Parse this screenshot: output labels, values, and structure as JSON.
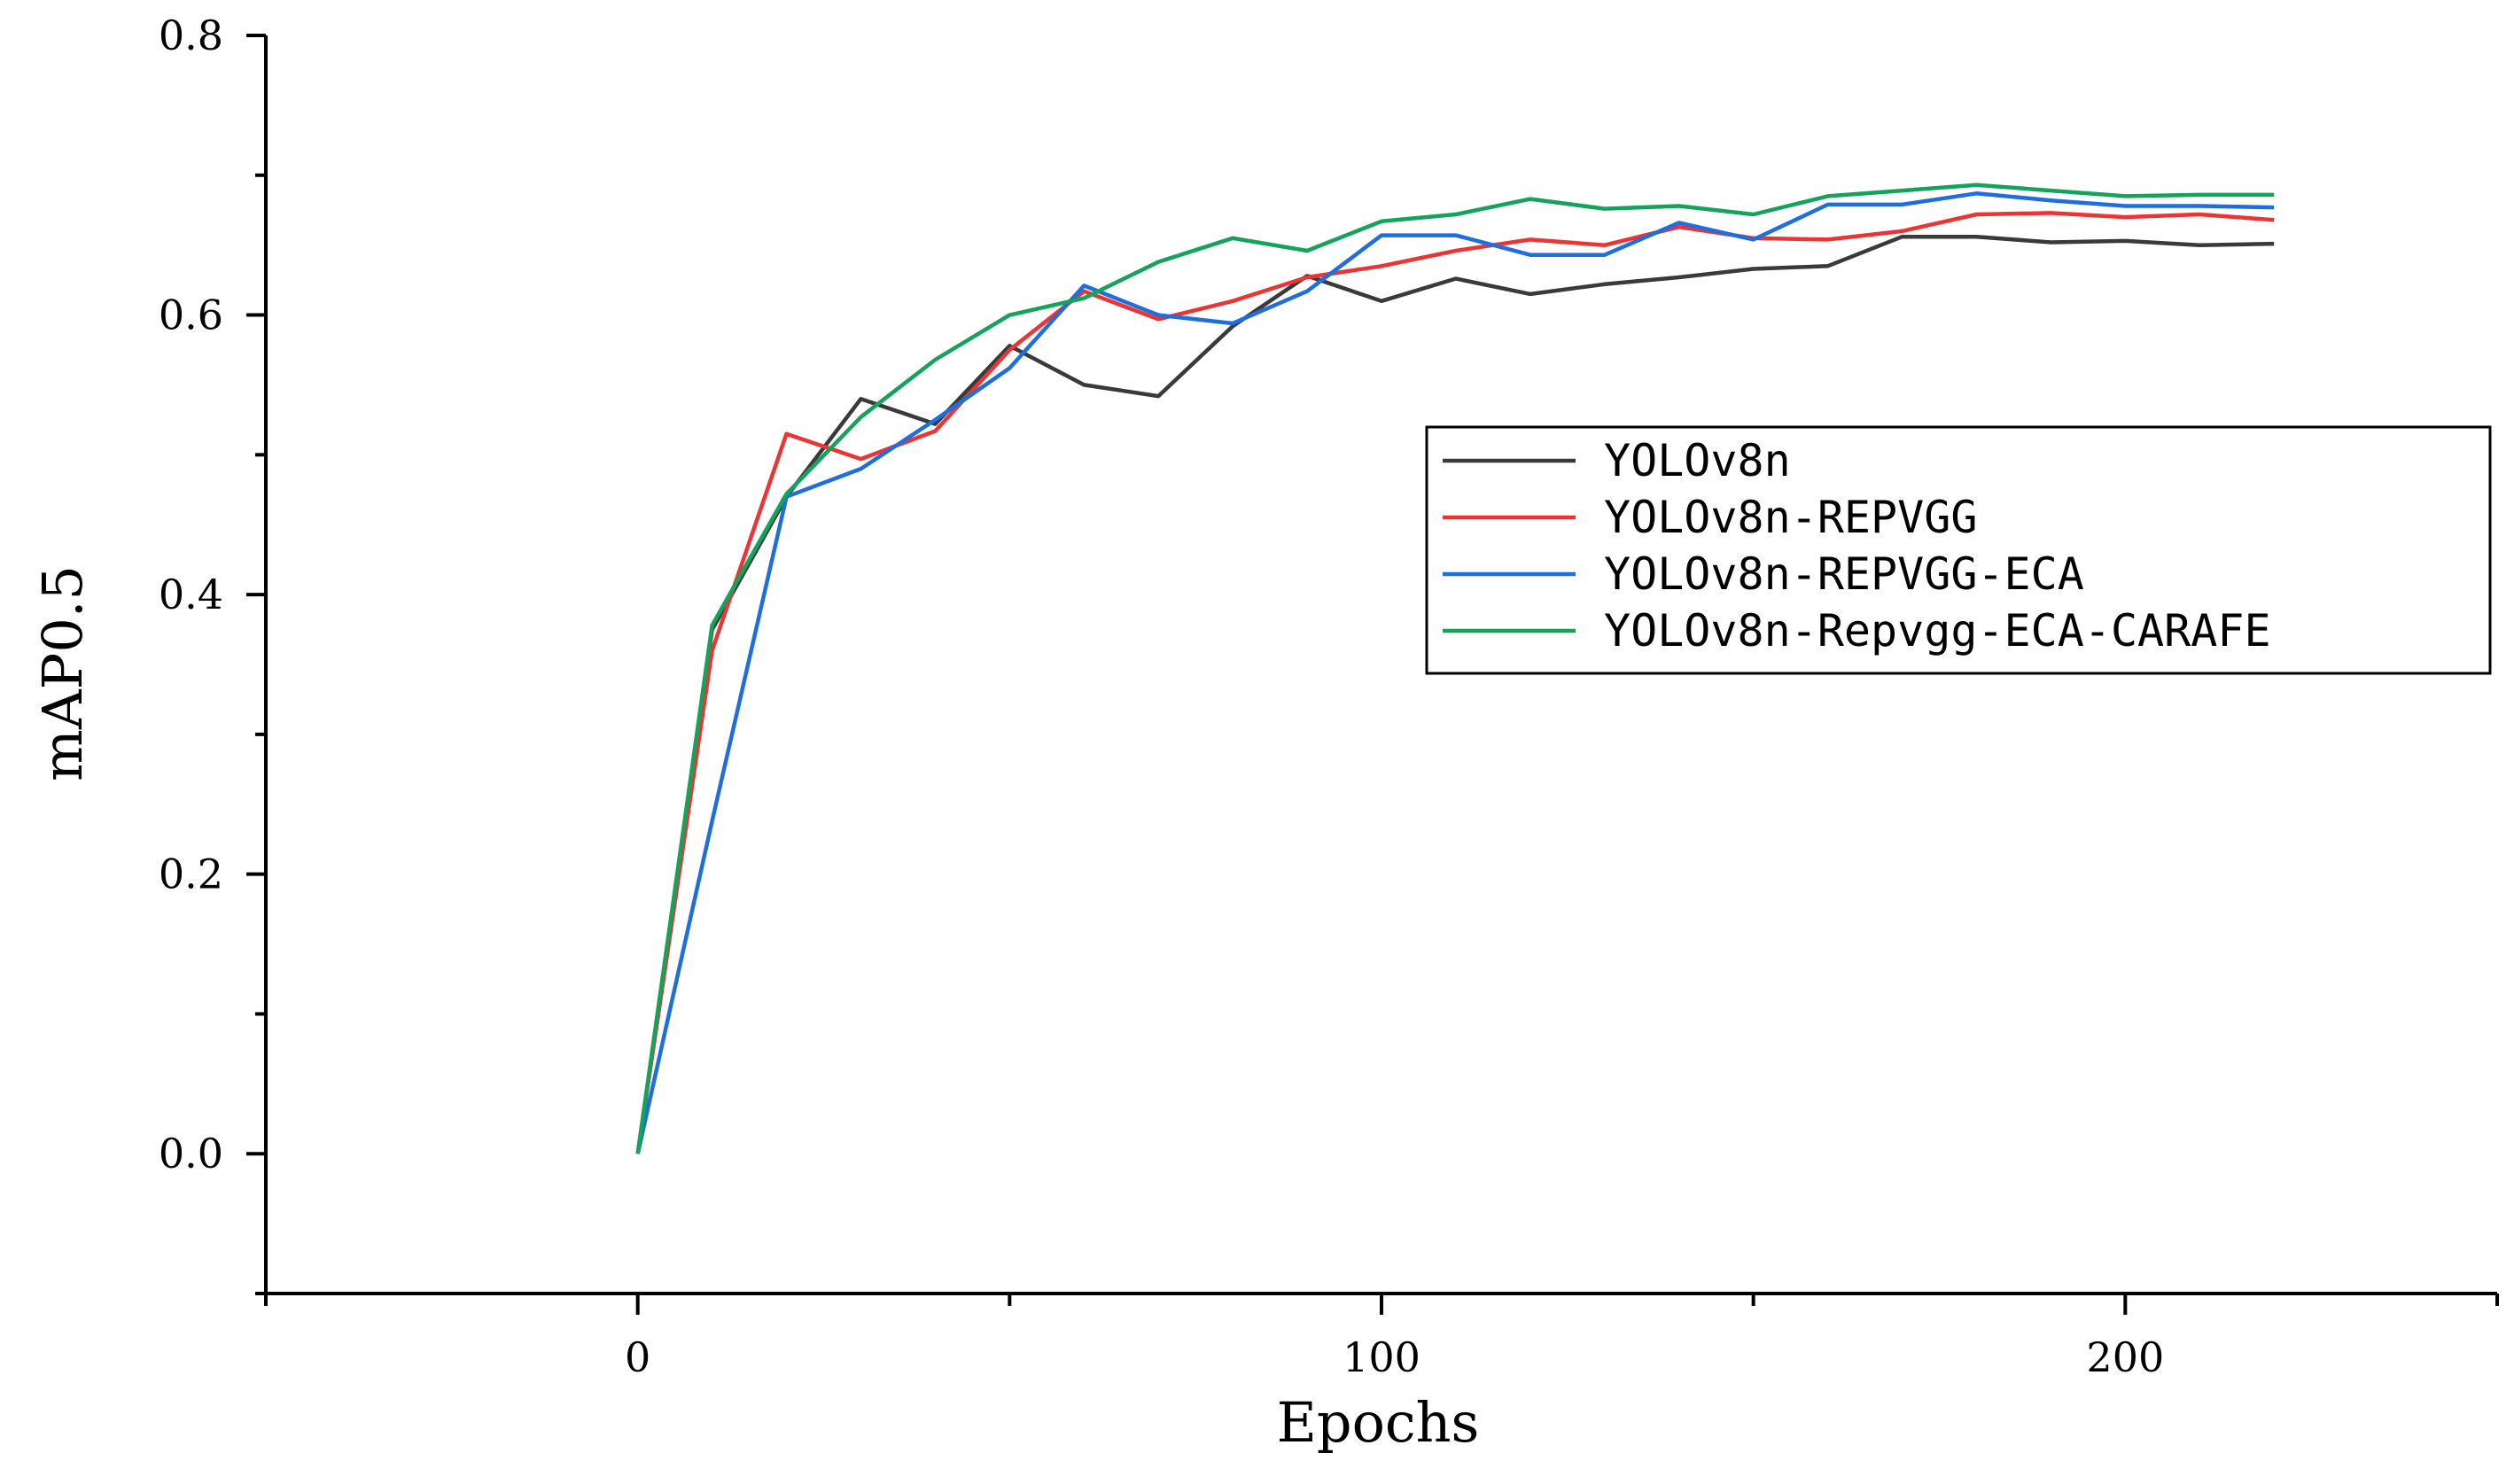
{
  "chart_data": {
    "type": "line",
    "title": "",
    "xlabel": "Epochs",
    "ylabel": "mAP0.5",
    "xlim": [
      -50,
      250
    ],
    "ylim": [
      -0.1,
      0.8
    ],
    "x_ticks": [
      0,
      100,
      200
    ],
    "x_tick_labels": [
      "0",
      "100",
      "200"
    ],
    "y_ticks": [
      0.0,
      0.2,
      0.4,
      0.6,
      0.8
    ],
    "y_tick_labels": [
      "0.0",
      "0.2",
      "0.4",
      "0.6",
      "0.8"
    ],
    "grid": false,
    "legend_position": "center-right",
    "x": [
      0,
      10,
      20,
      30,
      40,
      50,
      60,
      70,
      80,
      90,
      100,
      110,
      120,
      130,
      140,
      150,
      160,
      170,
      180,
      190,
      200,
      210,
      220
    ],
    "series": [
      {
        "name": "YOLOv8n",
        "color": "#3a3a3a",
        "values": [
          0.0,
          0.375,
          0.47,
          0.54,
          0.522,
          0.578,
          0.55,
          0.542,
          0.592,
          0.628,
          0.61,
          0.626,
          0.615,
          0.622,
          0.627,
          0.633,
          0.635,
          0.656,
          0.656,
          0.652,
          0.653,
          0.65,
          0.651
        ]
      },
      {
        "name": "YOLOv8n-REPVGG",
        "color": "#ee3333",
        "values": [
          0.0,
          0.36,
          0.515,
          0.497,
          0.517,
          0.575,
          0.617,
          0.597,
          0.61,
          0.627,
          0.635,
          0.646,
          0.654,
          0.65,
          0.663,
          0.655,
          0.654,
          0.66,
          0.672,
          0.673,
          0.67,
          0.672,
          0.668
        ]
      },
      {
        "name": "YOLOv8n-REPVGG-ECA",
        "color": "#1f6ee0",
        "values": [
          0.0,
          0.238,
          0.47,
          0.49,
          0.525,
          0.562,
          0.621,
          0.6,
          0.594,
          0.617,
          0.657,
          0.657,
          0.643,
          0.643,
          0.666,
          0.654,
          0.679,
          0.679,
          0.687,
          0.682,
          0.678,
          0.678,
          0.677
        ]
      },
      {
        "name": "YOLOv8n-Repvgg-ECA-CARAFE",
        "color": "#13a35a",
        "values": [
          0.0,
          0.378,
          0.472,
          0.527,
          0.568,
          0.6,
          0.612,
          0.638,
          0.655,
          0.646,
          0.667,
          0.672,
          0.683,
          0.676,
          0.678,
          0.672,
          0.685,
          0.689,
          0.693,
          0.689,
          0.685,
          0.686,
          0.686
        ]
      }
    ]
  }
}
